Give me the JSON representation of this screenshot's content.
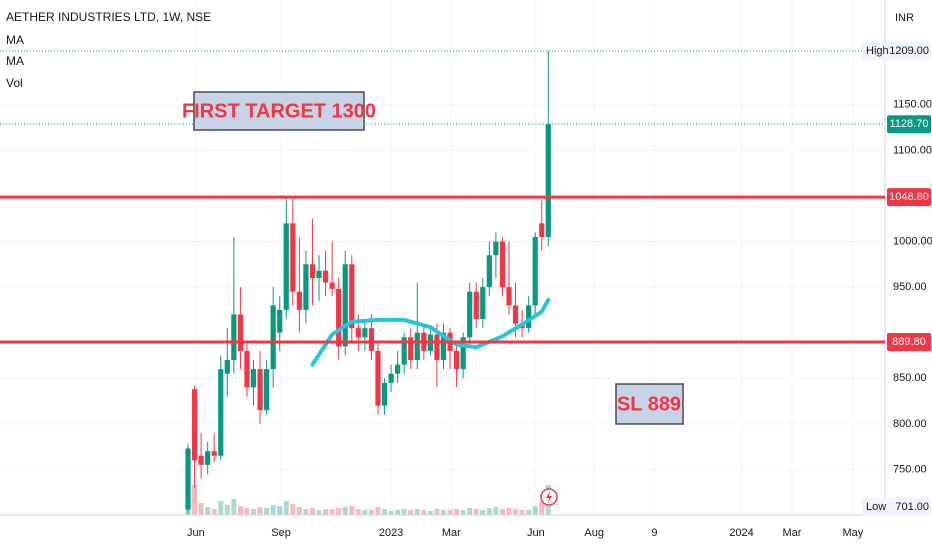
{
  "chart_data": {
    "type": "candlestick",
    "title": "AETHER INDUSTRIES LTD, 1W, NSE",
    "legend_items": [
      "MA",
      "MA",
      "Vol"
    ],
    "currency": "INR",
    "open": [
      706,
      838,
      765,
      755,
      770,
      765,
      855,
      870,
      920,
      880,
      840,
      860,
      815,
      860,
      900,
      925,
      1020,
      945,
      925,
      975,
      960,
      968,
      955,
      948,
      885,
      975,
      905,
      895,
      905,
      880,
      820,
      845,
      855,
      865,
      895,
      870,
      900,
      880,
      898,
      870,
      900,
      880,
      860,
      895,
      945,
      915,
      950,
      985,
      1000,
      950,
      930,
      910,
      905,
      930,
      1020,
      1005
    ],
    "high": [
      778,
      842,
      790,
      780,
      790,
      875,
      905,
      1005,
      950,
      890,
      870,
      880,
      870,
      950,
      940,
      1050,
      1050,
      1005,
      990,
      1025,
      985,
      990,
      1000,
      960,
      990,
      985,
      920,
      915,
      920,
      890,
      850,
      865,
      880,
      900,
      905,
      955,
      910,
      905,
      910,
      910,
      905,
      890,
      900,
      955,
      955,
      960,
      1000,
      1010,
      1005,
      1000,
      955,
      925,
      940,
      1010,
      1045,
      1209
    ],
    "low": [
      701,
      730,
      740,
      745,
      758,
      760,
      830,
      855,
      860,
      830,
      820,
      800,
      810,
      840,
      880,
      915,
      930,
      900,
      910,
      930,
      935,
      940,
      940,
      870,
      875,
      890,
      880,
      880,
      870,
      810,
      810,
      835,
      845,
      855,
      860,
      860,
      870,
      875,
      840,
      860,
      860,
      840,
      850,
      885,
      905,
      905,
      940,
      960,
      940,
      920,
      895,
      895,
      900,
      920,
      990,
      995
    ],
    "close": [
      773,
      760,
      755,
      770,
      765,
      860,
      870,
      920,
      880,
      840,
      860,
      815,
      860,
      930,
      925,
      1020,
      945,
      925,
      975,
      960,
      968,
      955,
      948,
      885,
      975,
      905,
      895,
      905,
      880,
      820,
      845,
      855,
      865,
      895,
      870,
      900,
      880,
      898,
      870,
      900,
      880,
      860,
      895,
      945,
      915,
      950,
      985,
      1000,
      950,
      930,
      910,
      905,
      930,
      1005,
      1005,
      1128.7
    ],
    "volume": [
      22,
      30,
      12,
      8,
      6,
      14,
      10,
      16,
      9,
      7,
      6,
      8,
      7,
      10,
      9,
      14,
      11,
      8,
      6,
      7,
      5,
      6,
      6,
      7,
      8,
      9,
      6,
      5,
      5,
      8,
      6,
      4,
      5,
      6,
      5,
      6,
      5,
      4,
      6,
      5,
      5,
      6,
      5,
      7,
      6,
      5,
      7,
      8,
      6,
      7,
      6,
      5,
      5,
      9,
      14,
      30
    ],
    "up_color": "#089981",
    "down_color": "#f23645",
    "drawing": {
      "color": "#26c6da",
      "values": [
        null,
        null,
        null,
        null,
        null,
        null,
        null,
        null,
        null,
        null,
        null,
        null,
        null,
        null,
        null,
        null,
        null,
        null,
        null,
        865,
        null,
        null,
        898,
        null,
        null,
        912,
        null,
        null,
        null,
        914,
        null,
        null,
        null,
        914,
        null,
        null,
        null,
        906,
        null,
        null,
        null,
        887,
        null,
        null,
        884,
        null,
        null,
        null,
        896,
        null,
        null,
        909,
        null,
        null,
        923,
        936
      ]
    },
    "levels": [
      {
        "value": 1048.8,
        "label": "1048.80",
        "color": "#f23645"
      },
      {
        "value": 889.8,
        "label": "889.80",
        "color": "#f23645"
      }
    ],
    "high_mark": {
      "name": "High",
      "value": 1209,
      "label": "1209.00"
    },
    "low_mark": {
      "name": "Low",
      "value": 701,
      "label": "701.00"
    },
    "last_price": {
      "value": 1128.7,
      "label": "1128.70"
    },
    "annotations": [
      "FIRST TARGET 1300",
      "SL 889"
    ],
    "xlim": [
      -28.7,
      106.4
    ],
    "xticks": [
      {
        "value": 1.2,
        "label": "Jun"
      },
      {
        "value": 14.2,
        "label": "Sep"
      },
      {
        "value": 31,
        "label": "2023"
      },
      {
        "value": 40.2,
        "label": "Mar"
      },
      {
        "value": 53.1,
        "label": "Jun"
      },
      {
        "value": 62,
        "label": "Aug"
      },
      {
        "value": 71.2,
        "label": "9"
      },
      {
        "value": 84.5,
        "label": "2024"
      },
      {
        "value": 92.2,
        "label": "Mar"
      },
      {
        "value": 101.5,
        "label": "May"
      }
    ],
    "ylim": [
      700,
      1265
    ],
    "yticks": [
      {
        "value": 750,
        "label": "750.00"
      },
      {
        "value": 800,
        "label": "800.00"
      },
      {
        "value": 850,
        "label": "850.00"
      },
      {
        "value": 950,
        "label": "950.00"
      },
      {
        "value": 1000,
        "label": "1000.00"
      },
      {
        "value": 1100,
        "label": "1100.00"
      },
      {
        "value": 1150,
        "label": "1150.00"
      }
    ]
  }
}
